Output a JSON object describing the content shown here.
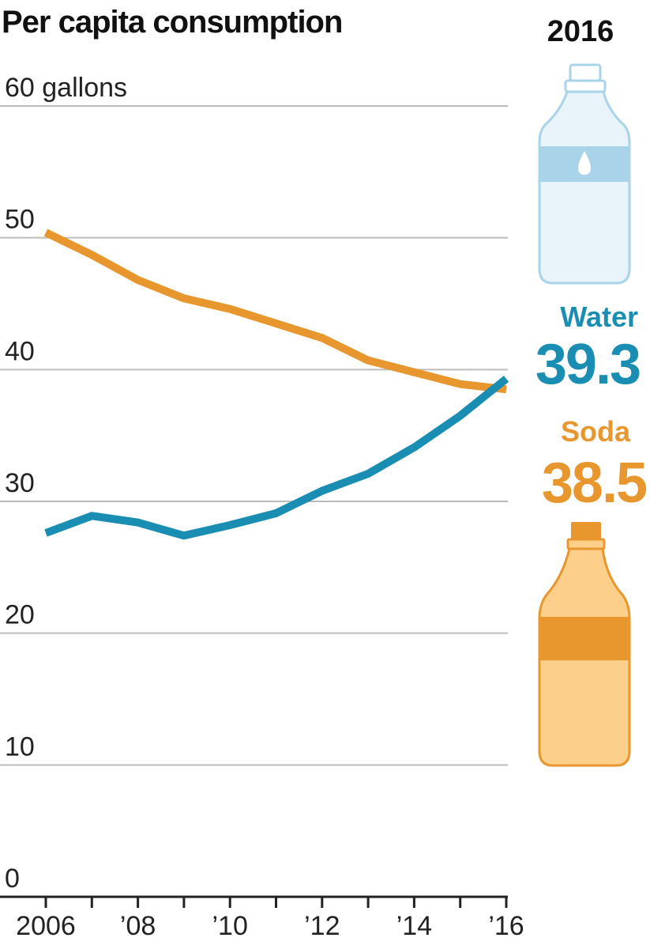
{
  "chart_data": {
    "type": "line",
    "title": "Per capita consumption",
    "ylabel": "gallons",
    "ylim": [
      0,
      60
    ],
    "yticks": [
      {
        "value": 0,
        "label": "0"
      },
      {
        "value": 10,
        "label": "10"
      },
      {
        "value": 20,
        "label": "20"
      },
      {
        "value": 30,
        "label": "30"
      },
      {
        "value": 40,
        "label": "40"
      },
      {
        "value": 50,
        "label": "50"
      },
      {
        "value": 60,
        "label": "60 gallons"
      }
    ],
    "xlim": [
      2006,
      2016
    ],
    "xticks": [
      {
        "value": 2006,
        "label": "2006"
      },
      {
        "value": 2008,
        "label": "’08"
      },
      {
        "value": 2010,
        "label": "’10"
      },
      {
        "value": 2012,
        "label": "’12"
      },
      {
        "value": 2014,
        "label": "’14"
      },
      {
        "value": 2016,
        "label": "’16"
      }
    ],
    "x": [
      2006,
      2007,
      2008,
      2009,
      2010,
      2011,
      2012,
      2013,
      2014,
      2015,
      2016
    ],
    "series": [
      {
        "name": "Water",
        "color": "#1a8db3",
        "values": [
          27.6,
          28.9,
          28.4,
          27.4,
          28.2,
          29.1,
          30.8,
          32.1,
          34.1,
          36.5,
          39.3
        ]
      },
      {
        "name": "Soda",
        "color": "#e8962e",
        "values": [
          50.4,
          48.7,
          46.8,
          45.4,
          44.6,
          43.5,
          42.4,
          40.7,
          39.8,
          38.9,
          38.5
        ]
      }
    ],
    "annotation": {
      "year": "2016",
      "items": [
        {
          "name": "Water",
          "value": "39.3",
          "color": "#1a8db3",
          "icon": "water-bottle-icon"
        },
        {
          "name": "Soda",
          "value": "38.5",
          "color": "#e8962e",
          "icon": "soda-bottle-icon"
        }
      ]
    }
  }
}
